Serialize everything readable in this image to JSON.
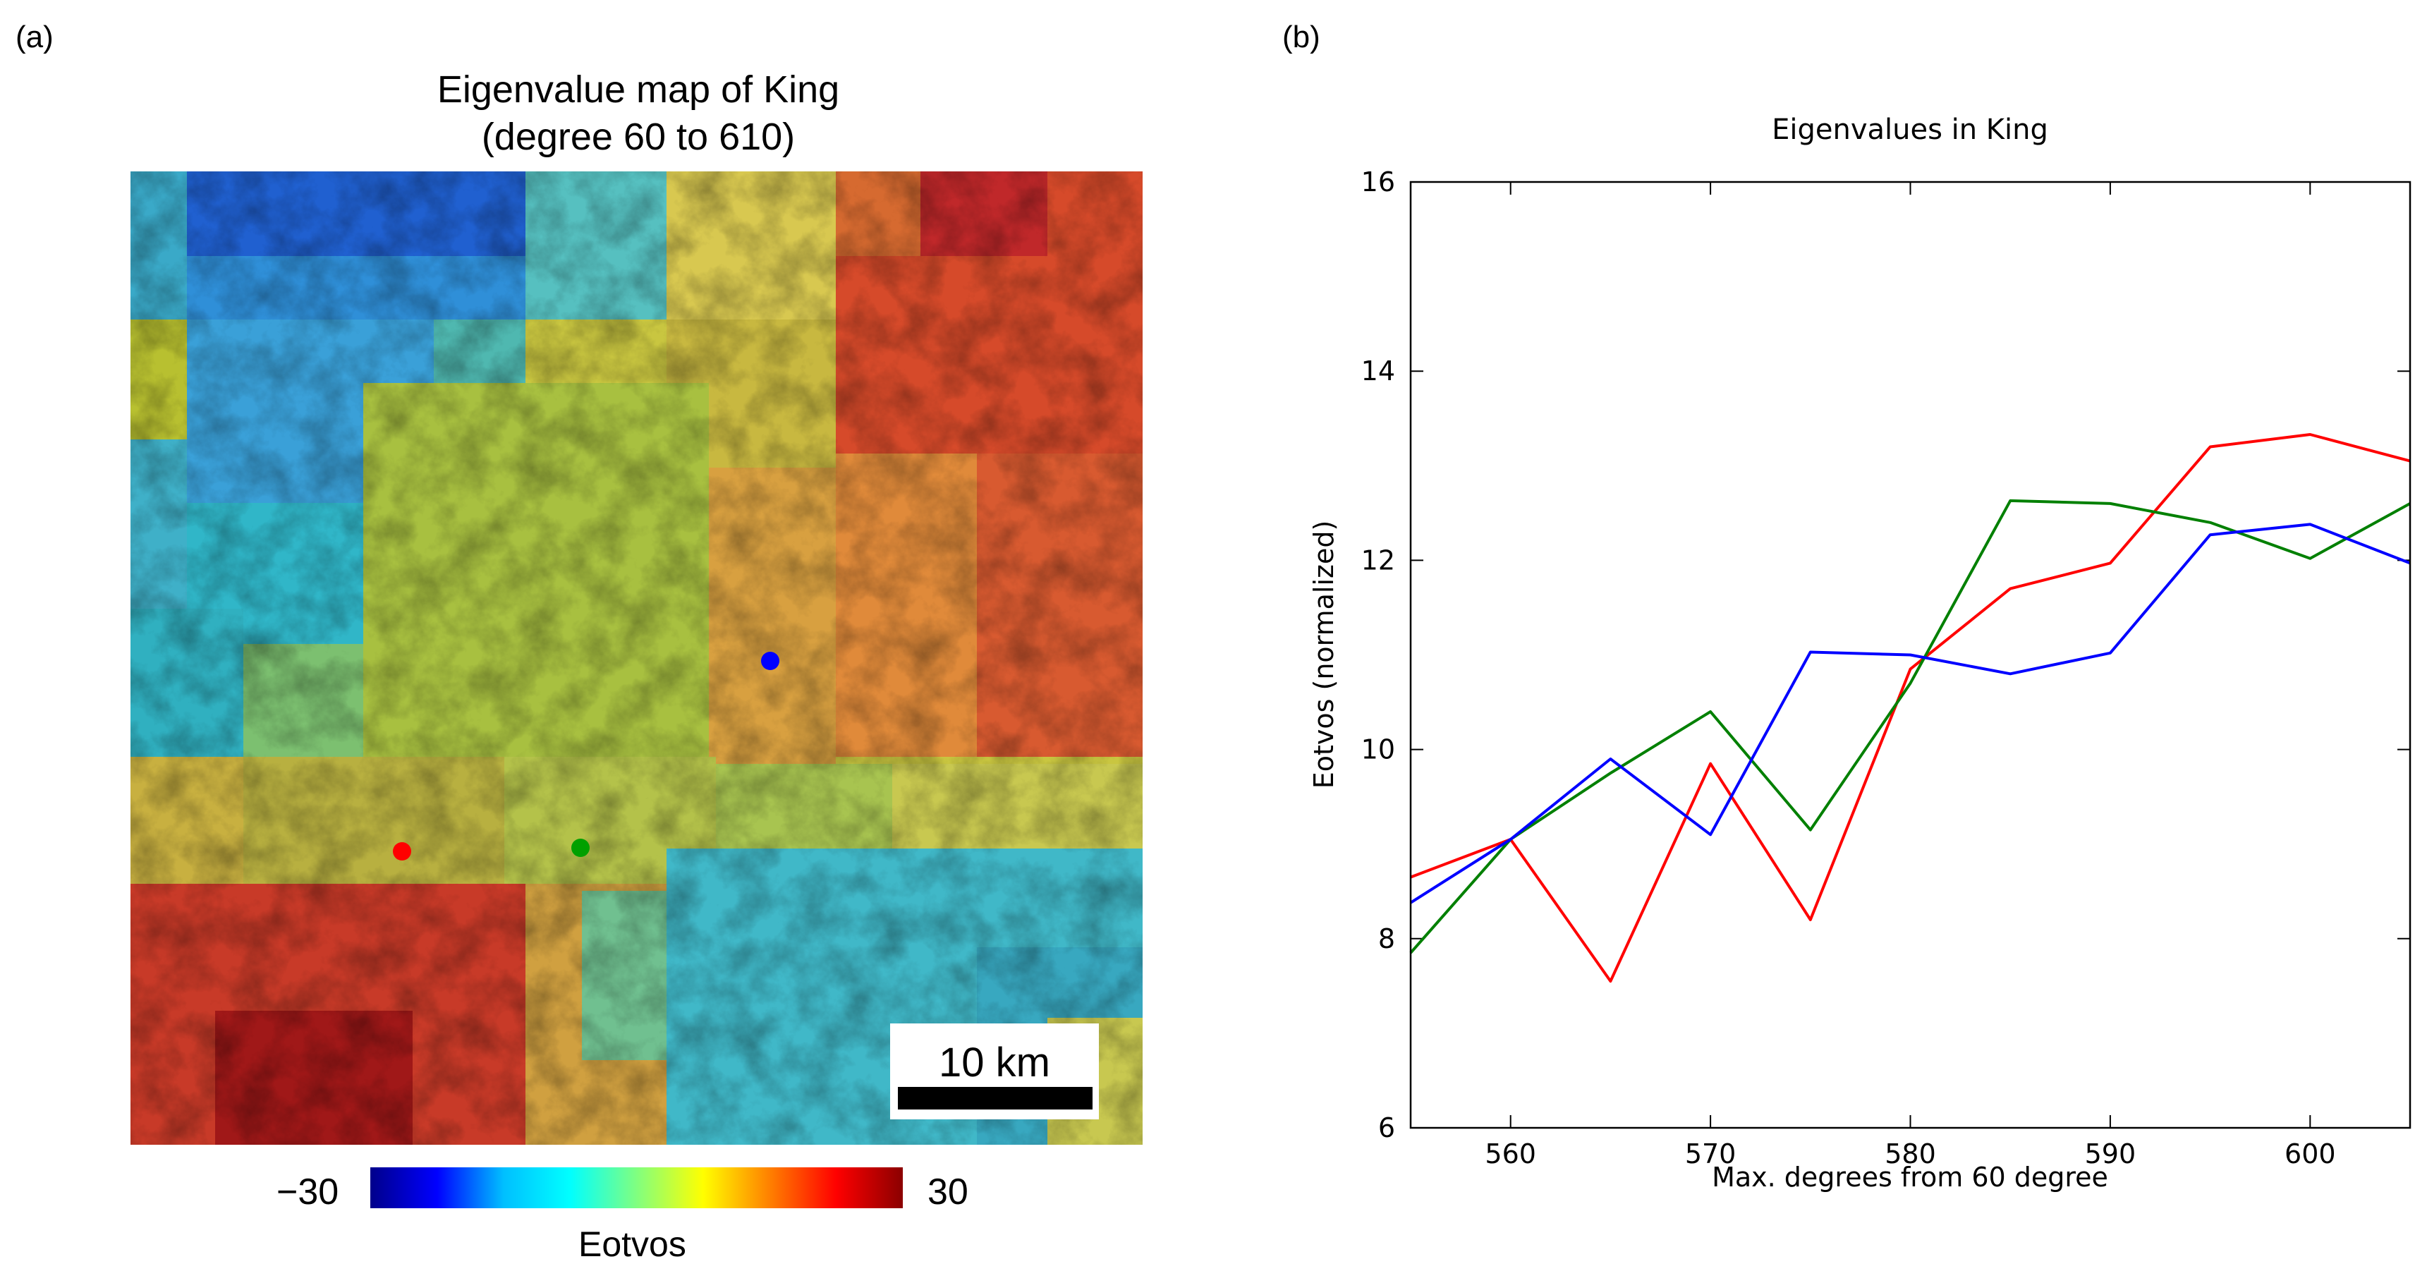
{
  "panel_a_label": "(a)",
  "panel_b_label": "(b)",
  "map": {
    "title_line1": "Eigenvalue map of King",
    "title_line2": "(degree 60 to 610)",
    "scale_bar_label": "10 km",
    "colorbar_label": "Eotvos",
    "colorbar_min": "−30",
    "colorbar_max": "30",
    "markers": [
      {
        "name": "blue-marker",
        "color": "#0000ff"
      },
      {
        "name": "green-marker",
        "color": "#00a000"
      },
      {
        "name": "red-marker",
        "color": "#ff0000"
      }
    ]
  },
  "chart_data": {
    "type": "line",
    "title": "Eigenvalues in King",
    "xlabel": "Max. degrees from 60 degree",
    "ylabel": "Eotvos (normalized)",
    "xlim": [
      555,
      605
    ],
    "ylim": [
      6,
      16
    ],
    "xticks": [
      560,
      570,
      580,
      590,
      600
    ],
    "yticks": [
      6,
      8,
      10,
      12,
      14,
      16
    ],
    "series": [
      {
        "name": "red",
        "color": "#ff0000",
        "x": [
          555,
          560,
          565,
          570,
          575,
          580,
          585,
          590,
          595,
          600,
          605
        ],
        "y": [
          8.65,
          9.05,
          7.55,
          9.85,
          8.2,
          10.85,
          11.7,
          11.97,
          13.2,
          13.33,
          13.05
        ]
      },
      {
        "name": "green",
        "color": "#008000",
        "x": [
          555,
          560,
          565,
          570,
          575,
          580,
          585,
          590,
          595,
          600,
          605
        ],
        "y": [
          7.85,
          9.05,
          9.75,
          10.4,
          9.15,
          10.7,
          12.63,
          12.6,
          12.4,
          12.02,
          12.6
        ]
      },
      {
        "name": "blue",
        "color": "#0000ff",
        "x": [
          555,
          560,
          565,
          570,
          575,
          580,
          585,
          590,
          595,
          600,
          605
        ],
        "y": [
          8.38,
          9.05,
          9.9,
          9.1,
          11.03,
          11.0,
          10.8,
          11.02,
          12.27,
          12.38,
          11.97
        ]
      }
    ]
  }
}
